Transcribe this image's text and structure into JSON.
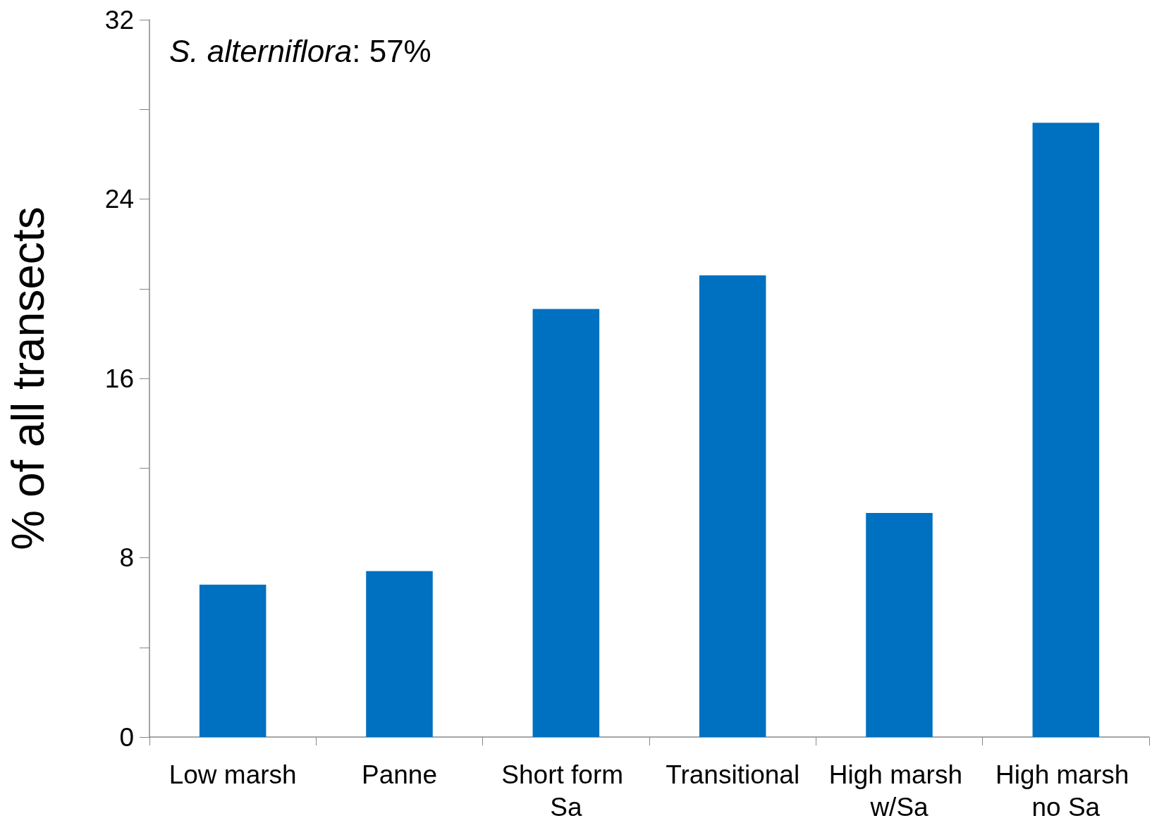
{
  "chart_data": {
    "type": "bar",
    "ylabel": "% of all transects",
    "annotations": [
      "S. alterniflora: 57%"
    ],
    "categories": [
      "Low marsh",
      "Panne",
      "Short form Sa",
      "Transitional",
      "High marsh w/Sa",
      "High marsh no Sa"
    ],
    "values": [
      6.8,
      7.4,
      19.1,
      20.6,
      10.0,
      27.4
    ],
    "color": "#0070c0",
    "ylim": [
      0,
      32
    ],
    "yticks": [
      0,
      {
        "value": 4,
        "label": null
      },
      8,
      {
        "value": 12,
        "label": null
      },
      16,
      {
        "value": 20,
        "label": null
      },
      24,
      {
        "value": 28,
        "label": null
      },
      32
    ],
    "grid": false
  }
}
